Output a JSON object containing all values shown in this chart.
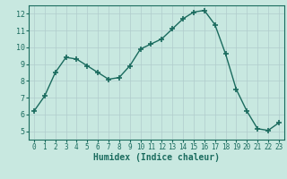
{
  "x": [
    0,
    1,
    2,
    3,
    4,
    5,
    6,
    7,
    8,
    9,
    10,
    11,
    12,
    13,
    14,
    15,
    16,
    17,
    18,
    19,
    20,
    21,
    22,
    23
  ],
  "y": [
    6.2,
    7.1,
    8.5,
    9.4,
    9.3,
    8.9,
    8.5,
    8.1,
    8.2,
    8.9,
    9.9,
    10.2,
    10.5,
    11.1,
    11.7,
    12.1,
    12.2,
    11.35,
    9.6,
    7.5,
    6.2,
    5.15,
    5.05,
    5.5
  ],
  "line_color": "#1a6b5e",
  "marker": "+",
  "marker_size": 4,
  "background_color": "#c8e8e0",
  "grid_color_major": "#b0cccc",
  "grid_color_minor": "#c4dcdc",
  "xlabel": "Humidex (Indice chaleur)",
  "xlim": [
    -0.5,
    23.5
  ],
  "ylim": [
    4.5,
    12.5
  ],
  "yticks": [
    5,
    6,
    7,
    8,
    9,
    10,
    11,
    12
  ],
  "xticks": [
    0,
    1,
    2,
    3,
    4,
    5,
    6,
    7,
    8,
    9,
    10,
    11,
    12,
    13,
    14,
    15,
    16,
    17,
    18,
    19,
    20,
    21,
    22,
    23
  ],
  "label_fontsize": 7,
  "tick_fontsize": 5.5
}
